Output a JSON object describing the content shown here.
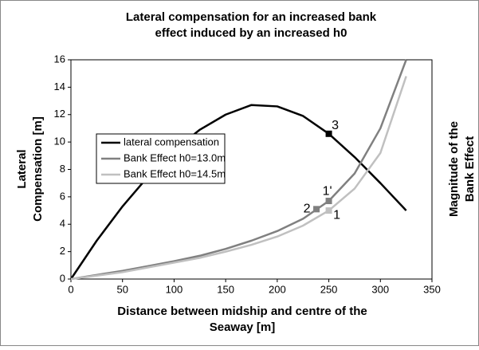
{
  "chart_data": {
    "type": "line",
    "title": [
      "Lateral compensation for an increased bank",
      "effect induced by an increased h0"
    ],
    "xlabel": [
      "Distance between midship and centre of the",
      "Seaway [m]"
    ],
    "ylabel": [
      "Lateral",
      "Compensation [m]"
    ],
    "y2label": [
      "Magnitude of the",
      "Bank Effect"
    ],
    "x": [
      0,
      25,
      50,
      75,
      100,
      125,
      150,
      175,
      200,
      225,
      250,
      275,
      300,
      325
    ],
    "series": [
      {
        "name": "lateral compensation",
        "color": "#000000",
        "values": [
          0,
          2.8,
          5.3,
          7.5,
          9.4,
          10.9,
          12.0,
          12.7,
          12.6,
          11.9,
          10.6,
          8.9,
          7.0,
          5.0
        ]
      },
      {
        "name": "Bank Effect h0=13.0m",
        "color": "#808080",
        "values": [
          0,
          0.3,
          0.6,
          0.95,
          1.3,
          1.7,
          2.2,
          2.8,
          3.5,
          4.4,
          5.7,
          7.7,
          11.0,
          16.0
        ]
      },
      {
        "name": "Bank Effect h0=14.5m",
        "color": "#c0c0c0",
        "values": [
          0,
          0.25,
          0.5,
          0.85,
          1.2,
          1.55,
          2.0,
          2.5,
          3.1,
          3.9,
          5.0,
          6.6,
          9.2,
          14.8
        ]
      }
    ],
    "markers": [
      {
        "label": "3",
        "x": 250,
        "y": 10.6,
        "color": "#000000"
      },
      {
        "label": "1'",
        "x": 250,
        "y": 5.7,
        "color": "#808080"
      },
      {
        "label": "2",
        "x": 238,
        "y": 5.1,
        "color": "#808080"
      },
      {
        "label": "1",
        "x": 250,
        "y": 5.0,
        "color": "#c0c0c0"
      }
    ],
    "xlim": [
      0,
      350
    ],
    "xticks": [
      0,
      50,
      100,
      150,
      200,
      250,
      300,
      350
    ],
    "ylim": [
      0,
      16
    ],
    "yticks": [
      0,
      2,
      4,
      6,
      8,
      10,
      12,
      14,
      16
    ],
    "legend": "center-left"
  }
}
